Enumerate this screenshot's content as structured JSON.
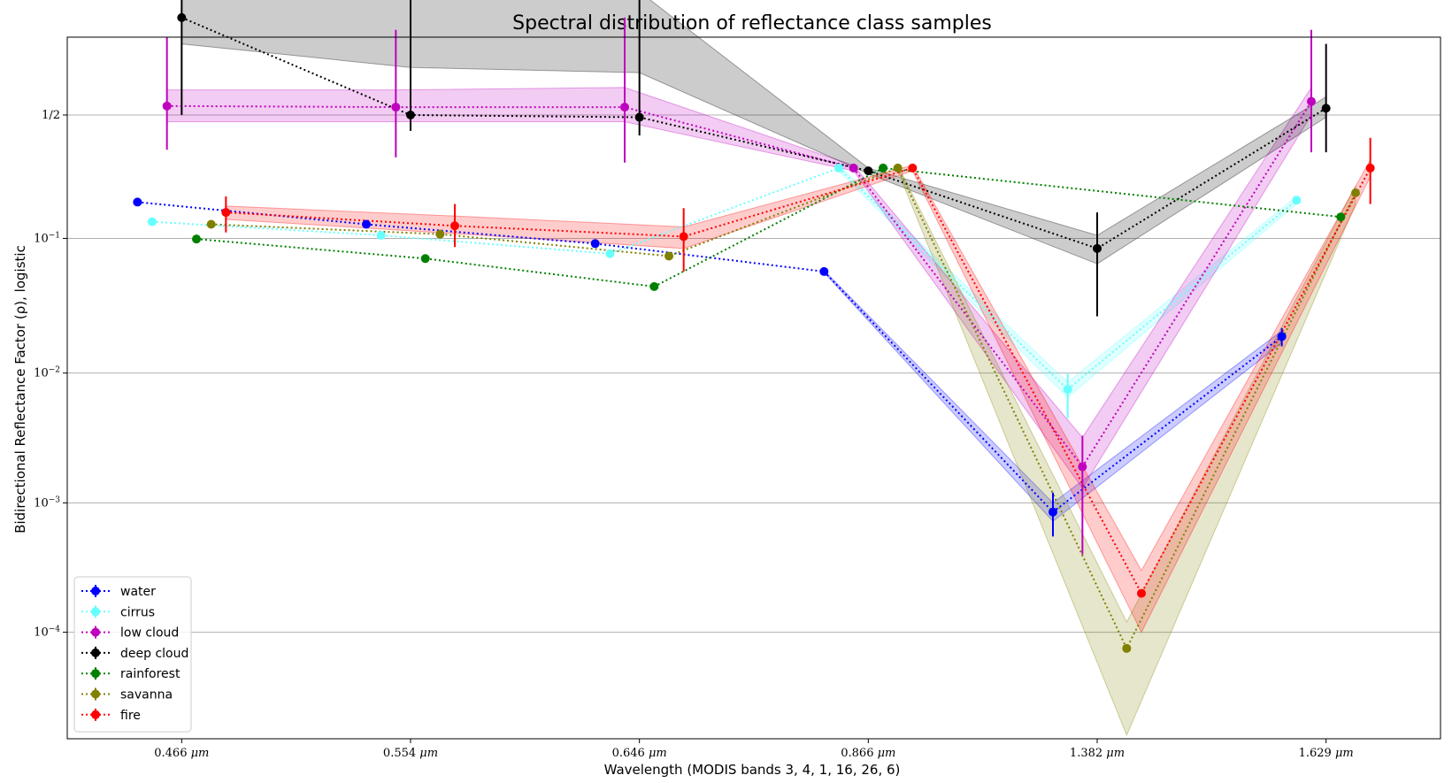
{
  "chart_data": {
    "type": "line",
    "title": "Spectral distribution of reflectance class samples",
    "xlabel": "Wavelength (MODIS bands 3, 4, 1, 16, 26, 6)",
    "ylabel": "Bidirectional Reflectance Factor (ρ), logistic",
    "yscale": "logistic",
    "categories": [
      "0.466",
      "0.554",
      "0.646",
      "0.866",
      "1.382",
      "1.629"
    ],
    "x_unit": "μm",
    "y_ticks": [
      {
        "value": 0.5,
        "label": "1/2"
      },
      {
        "value": 0.1,
        "base": "10",
        "exp": "−1"
      },
      {
        "value": 0.01,
        "base": "10",
        "exp": "−2"
      },
      {
        "value": 0.001,
        "base": "10",
        "exp": "−3"
      },
      {
        "value": 0.0001,
        "base": "10",
        "exp": "−4"
      }
    ],
    "ylim": [
      1.5e-05,
      0.8
    ],
    "grid": "horizontal",
    "legend_position": "lower-left",
    "series": [
      {
        "name": "water",
        "color": "#0000ff",
        "values": [
          0.175,
          0.125,
          0.092,
          0.058,
          0.00085,
          0.019
        ],
        "err_low": [
          0.0,
          0.0,
          0.0,
          0.0,
          0.00055,
          0.016
        ],
        "err_high": [
          0.0,
          0.0,
          0.0,
          0.0,
          0.0012,
          0.022
        ],
        "band_low": [
          null,
          null,
          null,
          0.057,
          0.00072,
          0.017
        ],
        "band_high": [
          null,
          null,
          null,
          0.059,
          0.001,
          0.021
        ]
      },
      {
        "name": "cirrus",
        "color": "#66ffff",
        "values": [
          0.13,
          0.105,
          0.078,
          0.28,
          0.0075,
          0.18
        ],
        "err_low": [
          0.0,
          0.0,
          0.0,
          0.0,
          0.0045,
          0.0
        ],
        "err_high": [
          0.0,
          0.0,
          0.0,
          0.0,
          0.01,
          0.0
        ],
        "band_low": [
          null,
          null,
          null,
          0.27,
          0.0065,
          0.17
        ],
        "band_high": [
          null,
          null,
          null,
          0.29,
          0.0085,
          0.19
        ]
      },
      {
        "name": "low cloud",
        "color": "#bf00bf",
        "values": [
          0.54,
          0.535,
          0.535,
          0.28,
          0.0019,
          0.56
        ],
        "err_low": [
          0.35,
          0.32,
          0.3,
          0.0,
          0.0004,
          0.34
        ],
        "err_high": [
          0.8,
          0.82,
          0.85,
          0.0,
          0.0033,
          0.82
        ],
        "band_low": [
          0.47,
          0.47,
          0.47,
          0.27,
          0.0013,
          0.5
        ],
        "band_high": [
          0.61,
          0.61,
          0.62,
          0.29,
          0.0032,
          0.62
        ]
      },
      {
        "name": "deep cloud",
        "color": "#000000",
        "values": [
          0.85,
          0.5,
          0.49,
          0.27,
          0.085,
          0.53
        ],
        "err_low": [
          0.5,
          0.43,
          0.41,
          0.0,
          0.027,
          0.34
        ],
        "err_high": [
          0.99,
          0.98,
          0.98,
          0.0,
          0.15,
          0.78
        ],
        "band_low": [
          0.78,
          0.7,
          0.68,
          0.26,
          0.066,
          0.49
        ],
        "band_high": [
          0.92,
          0.9,
          0.9,
          0.28,
          0.105,
          0.58
        ]
      },
      {
        "name": "rainforest",
        "color": "#008000",
        "values": [
          0.099,
          0.072,
          0.045,
          0.28,
          null,
          0.14
        ],
        "err_low": [
          0.0,
          0.0,
          0.0,
          0.0,
          null,
          0.0
        ],
        "err_high": [
          0.0,
          0.0,
          0.0,
          0.0,
          null,
          0.0
        ],
        "band_low": [
          null,
          null,
          null,
          null,
          null,
          null
        ],
        "band_high": [
          null,
          null,
          null,
          null,
          null,
          null
        ]
      },
      {
        "name": "savanna",
        "color": "#808000",
        "values": [
          0.125,
          0.107,
          0.075,
          0.28,
          7.5e-05,
          0.2
        ],
        "err_low": [
          0.0,
          0.0,
          0.0,
          0.0,
          0.0,
          0.0
        ],
        "err_high": [
          0.0,
          0.0,
          0.0,
          0.0,
          0.0,
          0.0
        ],
        "band_low": [
          null,
          null,
          null,
          0.27,
          1.6e-05,
          0.17
        ],
        "band_high": [
          null,
          null,
          null,
          0.29,
          0.00012,
          0.22
        ]
      },
      {
        "name": "fire",
        "color": "#ff0000",
        "values": [
          0.15,
          0.122,
          0.103,
          0.28,
          0.0002,
          0.28
        ],
        "err_low": [
          0.11,
          0.087,
          0.058,
          0.0,
          0.0,
          0.17
        ],
        "err_high": [
          0.19,
          0.17,
          0.16,
          0.0,
          0.0,
          0.4
        ],
        "band_low": [
          0.135,
          0.108,
          0.085,
          0.27,
          0.0001,
          0.25
        ],
        "band_high": [
          0.165,
          0.142,
          0.12,
          0.29,
          0.0003,
          0.31
        ]
      }
    ]
  }
}
